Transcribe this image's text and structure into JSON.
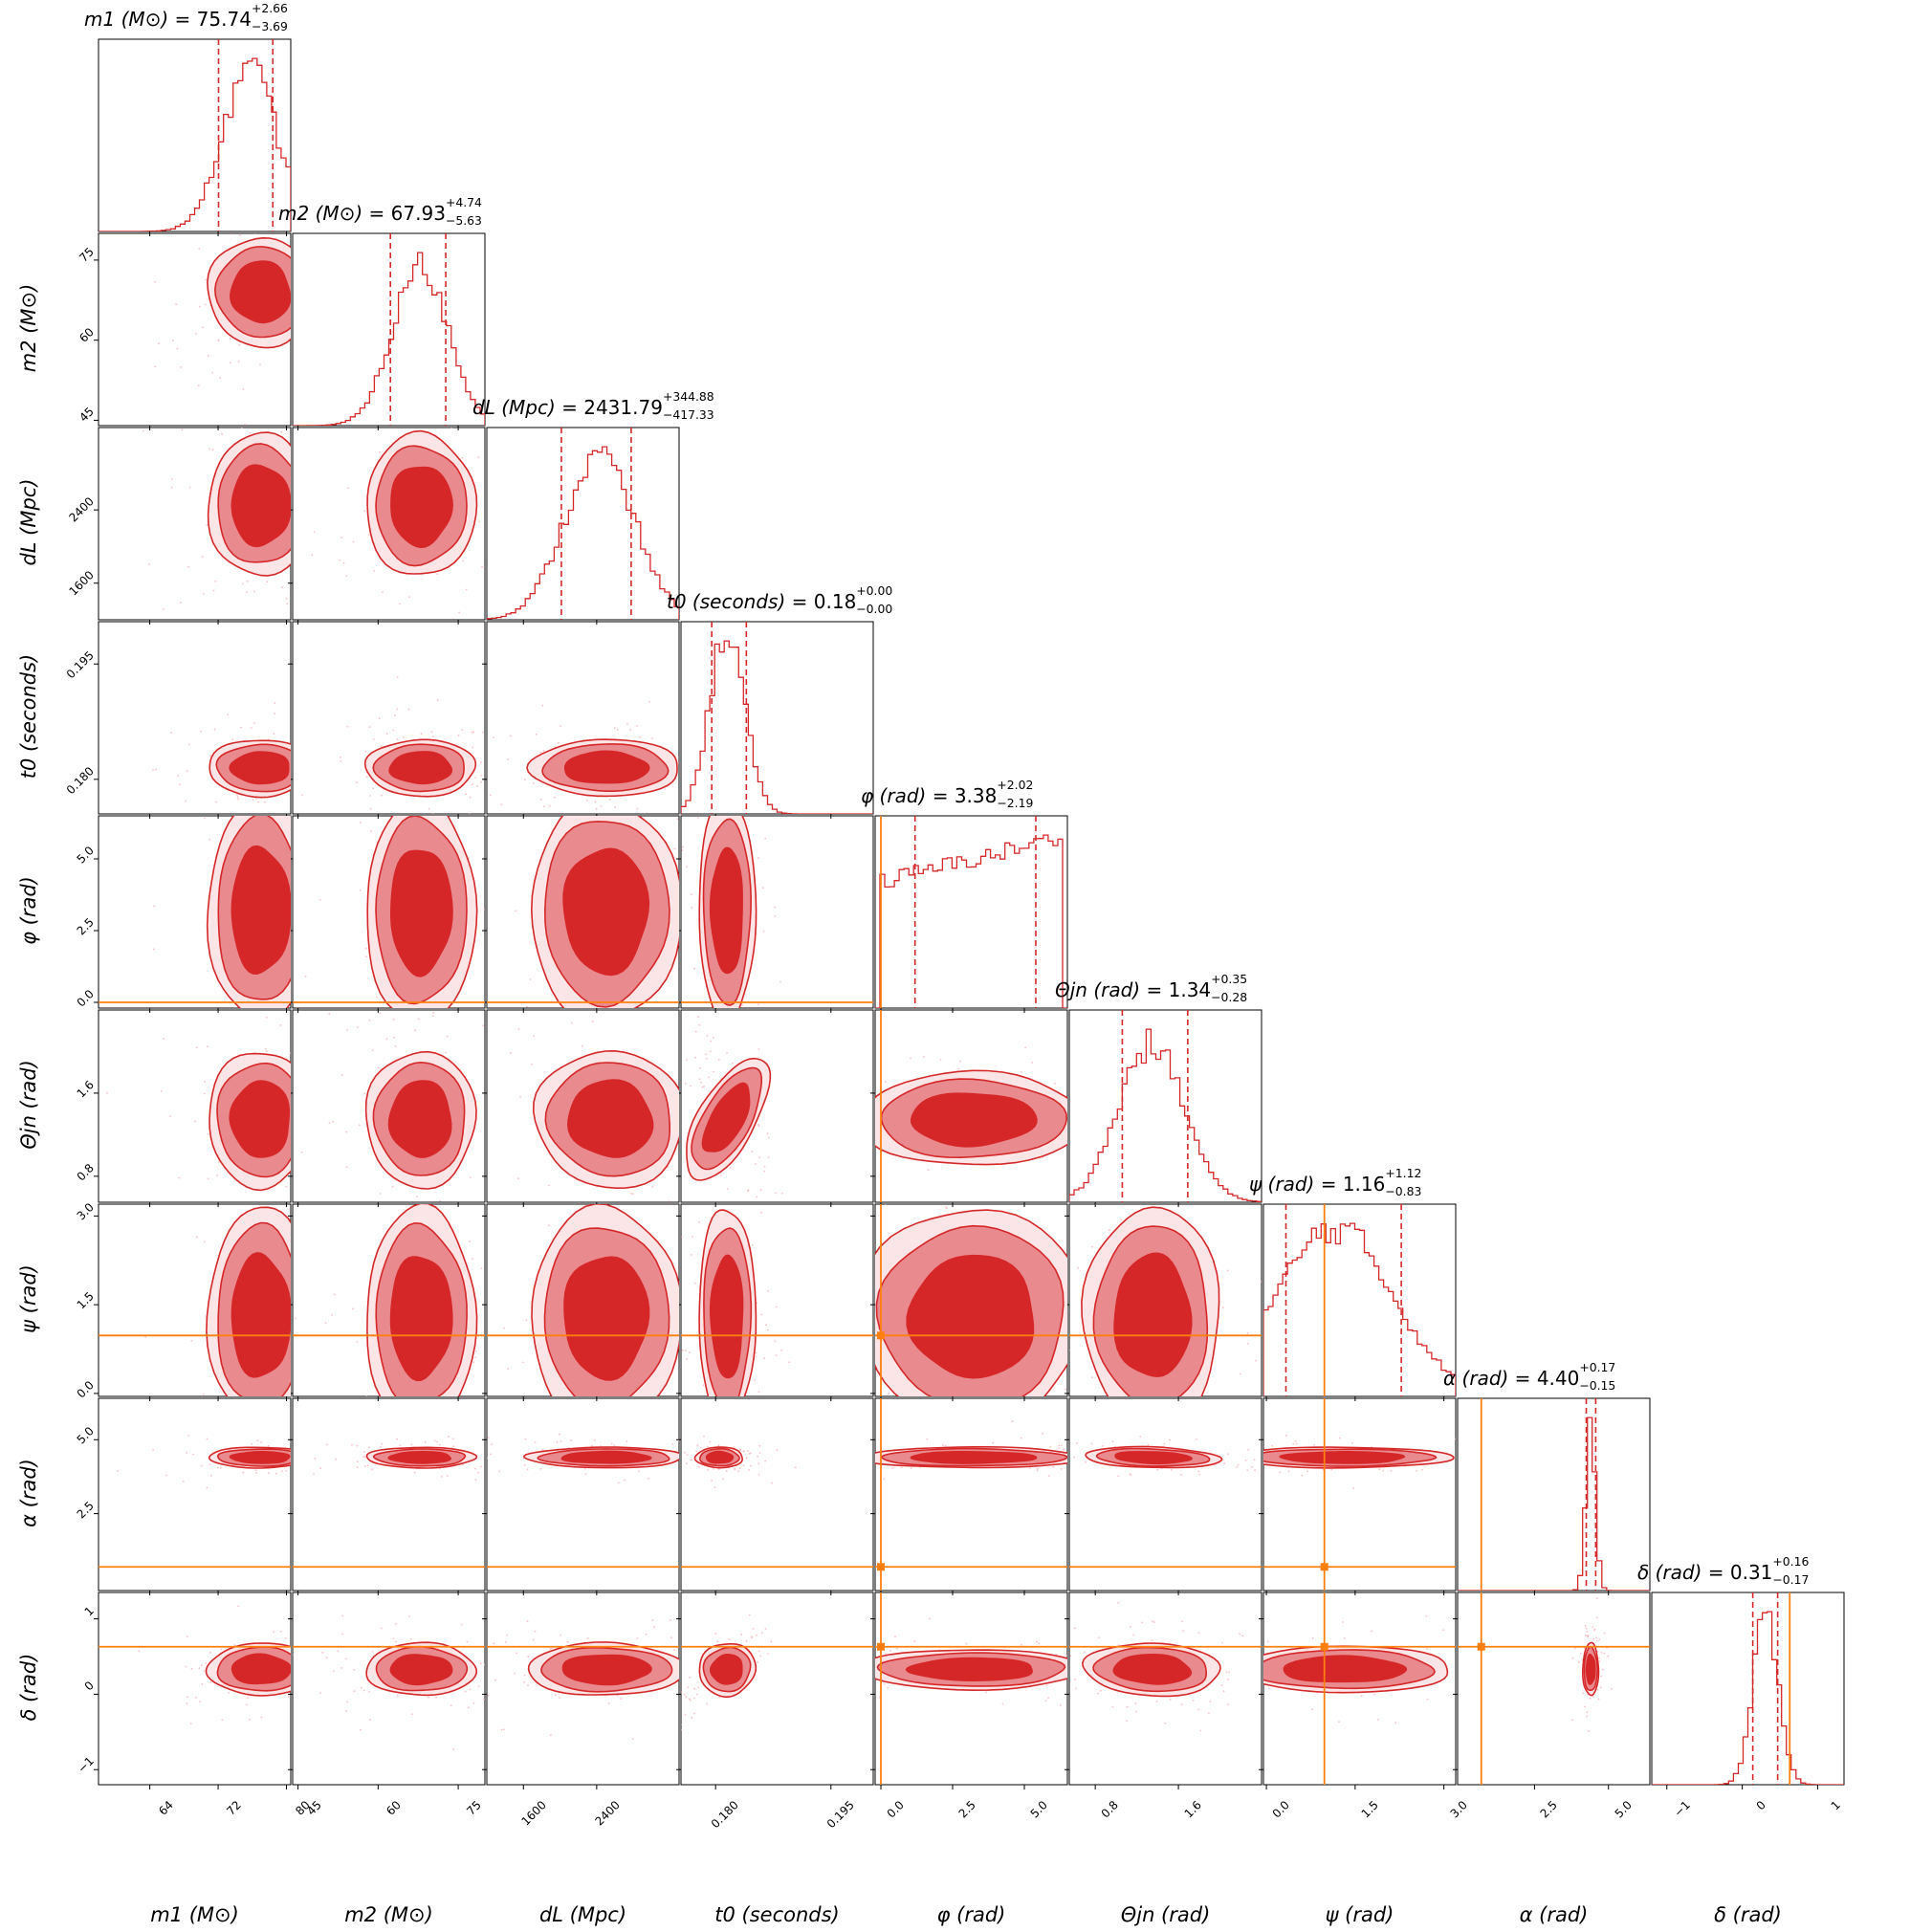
{
  "chart_data": {
    "type": "corner",
    "colors": {
      "posterior": "#d62728",
      "posterior_light": "#e98a8f",
      "truth": "#ff7f0e"
    },
    "parameters": [
      {
        "label": "m1 (M⊙)",
        "title_value": "75.74",
        "plus": "+2.66",
        "minus": "−3.69",
        "range": [
          58,
          80.5
        ],
        "ticks": [
          "64",
          "72",
          "80"
        ],
        "ticks_values": [
          64,
          72,
          80
        ],
        "median": 75.74,
        "quantiles": [
          72.05,
          78.4
        ]
      },
      {
        "label": "m2 (M⊙)",
        "title_value": "67.93",
        "plus": "+4.74",
        "minus": "−5.63",
        "range": [
          44,
          80
        ],
        "ticks": [
          "45",
          "60",
          "75"
        ],
        "ticks_values": [
          45,
          60,
          75
        ],
        "median": 67.93,
        "quantiles": [
          62.3,
          72.67
        ]
      },
      {
        "label": "dL (Mpc)",
        "title_value": "2431.79",
        "plus": "+344.88",
        "minus": "−417.33",
        "range": [
          1200,
          3300
        ],
        "ticks": [
          "1600",
          "2400"
        ],
        "ticks_values": [
          1600,
          2400
        ],
        "median": 2431.79,
        "quantiles": [
          2014.46,
          2776.67
        ]
      },
      {
        "label": "t0 (seconds)",
        "title_value": "0.18",
        "plus": "+0.00",
        "minus": "−0.00",
        "range": [
          0.1755,
          0.2005
        ],
        "ticks": [
          "0.180",
          "0.195"
        ],
        "ticks_values": [
          0.18,
          0.195
        ],
        "median": 0.1815,
        "quantiles": [
          0.1795,
          0.184
        ]
      },
      {
        "label": "φ (rad)",
        "title_value": "3.38",
        "plus": "+2.02",
        "minus": "−2.19",
        "range": [
          -0.2,
          6.5
        ],
        "ticks": [
          "0.0",
          "2.5",
          "5.0"
        ],
        "ticks_values": [
          0,
          2.5,
          5
        ],
        "median": 3.38,
        "quantiles": [
          1.19,
          5.4
        ],
        "truth": 0.0
      },
      {
        "label": "Θjn (rad)",
        "title_value": "1.34",
        "plus": "+0.35",
        "minus": "−0.28",
        "range": [
          0.55,
          2.4
        ],
        "ticks": [
          "0.8",
          "1.6"
        ],
        "ticks_values": [
          0.8,
          1.6
        ],
        "median": 1.34,
        "quantiles": [
          1.06,
          1.69
        ]
      },
      {
        "label": "ψ (rad)",
        "title_value": "1.16",
        "plus": "+1.12",
        "minus": "−0.83",
        "range": [
          -0.05,
          3.2
        ],
        "ticks": [
          "0.0",
          "1.5",
          "3.0"
        ],
        "ticks_values": [
          0,
          1.5,
          3
        ],
        "median": 1.16,
        "quantiles": [
          0.33,
          2.28
        ],
        "truth": 0.98
      },
      {
        "label": "α (rad)",
        "title_value": "4.40",
        "plus": "+0.17",
        "minus": "−0.15",
        "range": [
          -0.1,
          6.4
        ],
        "ticks": [
          "2.5",
          "5.0"
        ],
        "ticks_values": [
          2.5,
          5
        ],
        "median": 4.4,
        "quantiles": [
          4.25,
          4.57
        ],
        "truth": 0.7
      },
      {
        "label": "δ (rad)",
        "title_value": "0.31",
        "plus": "+0.16",
        "minus": "−0.17",
        "range": [
          -1.2,
          1.35
        ],
        "ticks": [
          "−1",
          "0",
          "1"
        ],
        "ticks_values": [
          -1,
          0,
          1
        ],
        "median": 0.31,
        "quantiles": [
          0.14,
          0.47
        ],
        "truth": 0.63
      }
    ],
    "pairs": [
      {
        "row": 1,
        "col": 0,
        "center": [
          77,
          69
        ],
        "sigma": [
          3,
          5
        ],
        "rho": 0.45
      },
      {
        "row": 2,
        "col": 0,
        "center": [
          77,
          2450
        ],
        "sigma": [
          3,
          380
        ],
        "rho": 0.0
      },
      {
        "row": 2,
        "col": 1,
        "center": [
          68,
          2450
        ],
        "sigma": [
          5,
          380
        ],
        "rho": 0.0
      },
      {
        "row": 3,
        "col": 0,
        "center": [
          77,
          0.1815
        ],
        "sigma": [
          3,
          0.0018
        ],
        "rho": 0.0
      },
      {
        "row": 3,
        "col": 1,
        "center": [
          68,
          0.1815
        ],
        "sigma": [
          5,
          0.0018
        ],
        "rho": 0.0
      },
      {
        "row": 3,
        "col": 2,
        "center": [
          2500,
          0.1815
        ],
        "sigma": [
          400,
          0.0018
        ],
        "rho": 0.0
      },
      {
        "row": 4,
        "col": 0,
        "center": [
          77,
          3.2
        ],
        "sigma": [
          3,
          1.9
        ],
        "rho": 0.0
      },
      {
        "row": 4,
        "col": 1,
        "center": [
          68,
          3.2
        ],
        "sigma": [
          5,
          1.9
        ],
        "rho": 0.0
      },
      {
        "row": 4,
        "col": 2,
        "center": [
          2500,
          3.2
        ],
        "sigma": [
          400,
          1.9
        ],
        "rho": 0.0
      },
      {
        "row": 4,
        "col": 3,
        "center": [
          0.1815,
          3.2
        ],
        "sigma": [
          0.0018,
          1.9
        ],
        "rho": 0.0
      },
      {
        "row": 5,
        "col": 0,
        "center": [
          77,
          1.35
        ],
        "sigma": [
          3,
          0.32
        ],
        "rho": 0.0
      },
      {
        "row": 5,
        "col": 1,
        "center": [
          68,
          1.35
        ],
        "sigma": [
          5,
          0.32
        ],
        "rho": 0.0
      },
      {
        "row": 5,
        "col": 2,
        "center": [
          2550,
          1.35
        ],
        "sigma": [
          400,
          0.32
        ],
        "rho": -0.5
      },
      {
        "row": 5,
        "col": 3,
        "center": [
          0.1815,
          1.35
        ],
        "sigma": [
          0.0018,
          0.32
        ],
        "rho": -0.7
      },
      {
        "row": 5,
        "col": 4,
        "center": [
          3.2,
          1.35
        ],
        "sigma": [
          1.9,
          0.22
        ],
        "rho": 0.0
      },
      {
        "row": 6,
        "col": 0,
        "center": [
          77,
          1.3
        ],
        "sigma": [
          3,
          0.9
        ],
        "rho": 0.0
      },
      {
        "row": 6,
        "col": 1,
        "center": [
          68,
          1.3
        ],
        "sigma": [
          5,
          0.9
        ],
        "rho": 0.0
      },
      {
        "row": 6,
        "col": 2,
        "center": [
          2500,
          1.3
        ],
        "sigma": [
          400,
          0.9
        ],
        "rho": 0.0
      },
      {
        "row": 6,
        "col": 3,
        "center": [
          0.1815,
          1.3
        ],
        "sigma": [
          0.0018,
          0.9
        ],
        "rho": 0.0
      },
      {
        "row": 6,
        "col": 4,
        "center": [
          3.2,
          1.3
        ],
        "sigma": [
          1.9,
          0.9
        ],
        "rho": 0.0
      },
      {
        "row": 6,
        "col": 5,
        "center": [
          1.35,
          1.3
        ],
        "sigma": [
          0.32,
          0.9
        ],
        "rho": 0.0
      },
      {
        "row": 7,
        "col": 0,
        "center": [
          77,
          4.4
        ],
        "sigma": [
          3,
          0.17
        ],
        "rho": 0.0
      },
      {
        "row": 7,
        "col": 1,
        "center": [
          68,
          4.4
        ],
        "sigma": [
          5,
          0.17
        ],
        "rho": 0.0
      },
      {
        "row": 7,
        "col": 2,
        "center": [
          2500,
          4.4
        ],
        "sigma": [
          420,
          0.17
        ],
        "rho": 0.0
      },
      {
        "row": 7,
        "col": 3,
        "center": [
          0.1805,
          4.4
        ],
        "sigma": [
          0.0015,
          0.17
        ],
        "rho": 0.0
      },
      {
        "row": 7,
        "col": 4,
        "center": [
          3.2,
          4.4
        ],
        "sigma": [
          1.9,
          0.17
        ],
        "rho": 0.0
      },
      {
        "row": 7,
        "col": 5,
        "center": [
          1.35,
          4.4
        ],
        "sigma": [
          0.32,
          0.17
        ],
        "rho": -0.4
      },
      {
        "row": 7,
        "col": 6,
        "center": [
          1.3,
          4.4
        ],
        "sigma": [
          0.9,
          0.17
        ],
        "rho": 0.0
      },
      {
        "row": 8,
        "col": 0,
        "center": [
          77,
          0.33
        ],
        "sigma": [
          3,
          0.17
        ],
        "rho": 0.0
      },
      {
        "row": 8,
        "col": 1,
        "center": [
          68,
          0.33
        ],
        "sigma": [
          5,
          0.17
        ],
        "rho": 0.0
      },
      {
        "row": 8,
        "col": 2,
        "center": [
          2500,
          0.33
        ],
        "sigma": [
          420,
          0.17
        ],
        "rho": 0.0
      },
      {
        "row": 8,
        "col": 3,
        "center": [
          0.1815,
          0.33
        ],
        "sigma": [
          0.0018,
          0.17
        ],
        "rho": 0.85
      },
      {
        "row": 8,
        "col": 4,
        "center": [
          3.2,
          0.33
        ],
        "sigma": [
          1.9,
          0.13
        ],
        "rho": 0.0
      },
      {
        "row": 8,
        "col": 5,
        "center": [
          1.35,
          0.33
        ],
        "sigma": [
          0.32,
          0.17
        ],
        "rho": -0.2
      },
      {
        "row": 8,
        "col": 6,
        "center": [
          1.3,
          0.33
        ],
        "sigma": [
          0.9,
          0.15
        ],
        "rho": 0.0
      },
      {
        "row": 8,
        "col": 7,
        "center": [
          4.4,
          0.33
        ],
        "sigma": [
          0.13,
          0.17
        ],
        "rho": 0.0
      }
    ]
  }
}
